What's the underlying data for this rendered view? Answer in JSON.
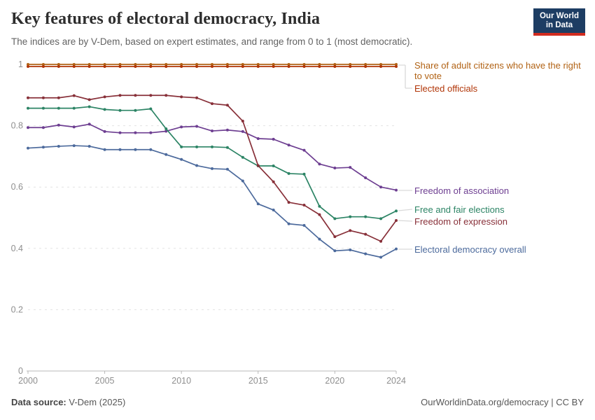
{
  "header": {
    "title": "Key features of electoral democracy, India",
    "subtitle": "The indices are by V-Dem, based on expert estimates, and range from 0 to 1 (most democratic).",
    "logo": {
      "line1": "Our World",
      "line2": "in Data"
    }
  },
  "chart_data": {
    "type": "line",
    "title": "Key features of electoral democracy, India",
    "x": [
      2000,
      2001,
      2002,
      2003,
      2004,
      2005,
      2006,
      2007,
      2008,
      2009,
      2010,
      2011,
      2012,
      2013,
      2014,
      2015,
      2016,
      2017,
      2018,
      2019,
      2020,
      2021,
      2022,
      2023,
      2024
    ],
    "series": [
      {
        "name": "Share of adult citizens who have the right to vote",
        "color": "#B16214",
        "values": [
          1,
          1,
          1,
          1,
          1,
          1,
          1,
          1,
          1,
          1,
          1,
          1,
          1,
          1,
          1,
          1,
          1,
          1,
          1,
          1,
          1,
          1,
          1,
          1,
          1
        ]
      },
      {
        "name": "Elected officials",
        "color": "#B13507",
        "values": [
          1,
          1,
          1,
          1,
          1,
          1,
          1,
          1,
          1,
          1,
          1,
          1,
          1,
          1,
          1,
          1,
          1,
          1,
          1,
          1,
          1,
          1,
          1,
          1,
          1
        ]
      },
      {
        "name": "Freedom of association",
        "color": "#6D3E91",
        "values": [
          0.794,
          0.794,
          0.802,
          0.796,
          0.805,
          0.781,
          0.777,
          0.777,
          0.777,
          0.782,
          0.796,
          0.798,
          0.783,
          0.786,
          0.781,
          0.758,
          0.756,
          0.737,
          0.72,
          0.675,
          0.662,
          0.664,
          0.63,
          0.6,
          0.59
        ]
      },
      {
        "name": "Free and fair elections",
        "color": "#2C8465",
        "values": [
          0.857,
          0.857,
          0.857,
          0.857,
          0.862,
          0.853,
          0.85,
          0.85,
          0.855,
          0.79,
          0.731,
          0.731,
          0.731,
          0.729,
          0.697,
          0.669,
          0.669,
          0.644,
          0.642,
          0.537,
          0.497,
          0.503,
          0.503,
          0.497,
          0.522
        ]
      },
      {
        "name": "Freedom of expression",
        "color": "#883039",
        "values": [
          0.891,
          0.891,
          0.891,
          0.898,
          0.885,
          0.894,
          0.899,
          0.899,
          0.899,
          0.899,
          0.894,
          0.891,
          0.872,
          0.867,
          0.815,
          0.67,
          0.617,
          0.55,
          0.541,
          0.51,
          0.438,
          0.458,
          0.446,
          0.423,
          0.491
        ]
      },
      {
        "name": "Electoral democracy overall",
        "color": "#4C6A9C",
        "values": [
          0.727,
          0.73,
          0.733,
          0.735,
          0.733,
          0.722,
          0.722,
          0.722,
          0.722,
          0.706,
          0.69,
          0.67,
          0.66,
          0.658,
          0.62,
          0.545,
          0.525,
          0.48,
          0.475,
          0.43,
          0.392,
          0.395,
          0.382,
          0.371,
          0.398
        ]
      }
    ],
    "ylim": [
      0,
      1
    ],
    "yticks": [
      0,
      0.2,
      0.4,
      0.6,
      0.8,
      1
    ],
    "xticks": [
      2000,
      2005,
      2010,
      2015,
      2020,
      2024
    ],
    "grid": "horizontal-dashed",
    "legend_position": "right"
  },
  "footer": {
    "source_label": "Data source:",
    "source_value": "V-Dem (2025)",
    "right_text": "OurWorldinData.org/democracy | CC BY"
  }
}
